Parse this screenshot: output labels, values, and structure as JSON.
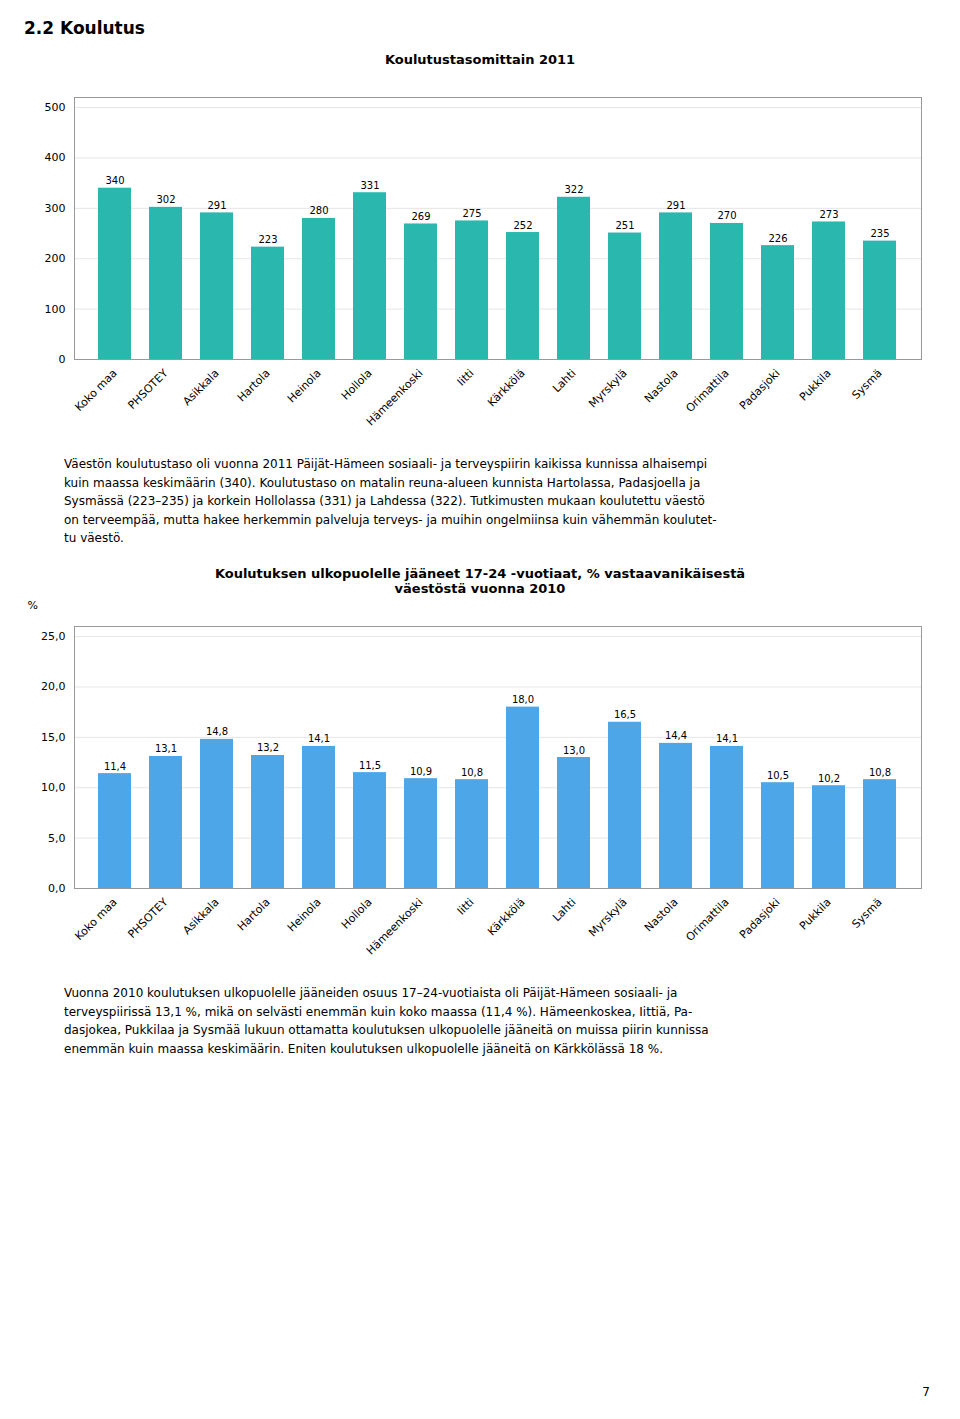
{
  "heading": "2.2 Koulutus",
  "page_number": "7",
  "chart_data": [
    {
      "type": "bar",
      "title": "Koulutustasomittain 2011",
      "categories": [
        "Koko maa",
        "PHSOTEY",
        "Asikkala",
        "Hartola",
        "Heinola",
        "Hollola",
        "Hämeenkoski",
        "Iitti",
        "Kärkkölä",
        "Lahti",
        "Myrskylä",
        "Nastola",
        "Orimattila",
        "Padasjoki",
        "Pukkila",
        "Sysmä"
      ],
      "values": [
        340,
        302,
        291,
        223,
        280,
        331,
        269,
        275,
        252,
        322,
        251,
        291,
        270,
        226,
        273,
        235
      ],
      "color": "#2AB8AE",
      "ylim": [
        0,
        520
      ],
      "yticks": [
        0,
        100,
        200,
        300,
        400,
        500
      ],
      "grid": true,
      "data_labels": true,
      "caption": [
        "Väestön koulutustaso oli vuonna 2011 Päijät-Hämeen sosiaali- ja terveyspiirin kaikissa kunnissa alhaisempi",
        "kuin maassa keskimäärin (340). Koulutustaso on matalin reuna-alueen kunnista Hartolassa, Padasjoella ja",
        "Sysmässä (223–235) ja korkein Hollolassa (331) ja Lahdessa (322). Tutkimusten mukaan koulutettu väestö",
        "on terveempää, mutta hakee herkemmin palveluja terveys- ja muihin ongelmiinsa kuin vähemmän koulutet-",
        "tu väestö."
      ]
    },
    {
      "type": "bar",
      "title": "Koulutuksen ulkopuolelle jääneet 17-24 -vuotiaat, % vastaavanikäisestä\nväestöstä vuonna 2010",
      "ylabel": "%",
      "categories": [
        "Koko maa",
        "PHSOTEY",
        "Asikkala",
        "Hartola",
        "Heinola",
        "Hollola",
        "Hämeenkoski",
        "Iitti",
        "Kärkkölä",
        "Lahti",
        "Myrskylä",
        "Nastola",
        "Orimattila",
        "Padasjoki",
        "Pukkila",
        "Sysmä"
      ],
      "values": [
        11.4,
        13.1,
        14.8,
        13.2,
        14.1,
        11.5,
        10.9,
        10.8,
        18.0,
        13.0,
        16.5,
        14.4,
        14.1,
        10.5,
        10.2,
        10.8
      ],
      "value_labels": [
        "11,4",
        "13,1",
        "14,8",
        "13,2",
        "14,1",
        "11,5",
        "10,9",
        "10,8",
        "18,0",
        "13,0",
        "16,5",
        "14,4",
        "14,1",
        "10,5",
        "10,2",
        "10,8"
      ],
      "color": "#4DA6E8",
      "ylim": [
        0,
        26.0
      ],
      "yticks": [
        {
          "value": 0.0,
          "label": "0,0"
        },
        {
          "value": 5.0,
          "label": "5,0"
        },
        {
          "value": 10.0,
          "label": "10,0"
        },
        {
          "value": 15.0,
          "label": "15,0"
        },
        {
          "value": 20.0,
          "label": "20,0"
        },
        {
          "value": 25.0,
          "label": "25,0"
        }
      ],
      "grid": true,
      "data_labels": true,
      "caption": [
        "Vuonna 2010 koulutuksen ulkopuolelle jääneiden osuus 17–24-vuotiaista oli Päijät-Hämeen sosiaali- ja",
        "terveyspiirissä 13,1 %, mikä on selvästi enemmän kuin koko maassa (11,4 %). Hämeenkoskea, Iittiä, Pa-",
        "dasjokea, Pukkilaa ja Sysmää lukuun ottamatta koulutuksen ulkopuolelle jääneitä on muissa piirin kunnissa",
        "enemmän kuin maassa keskimäärin. Eniten koulutuksen ulkopuolelle jääneitä on Kärkkölässä 18 %."
      ]
    }
  ]
}
